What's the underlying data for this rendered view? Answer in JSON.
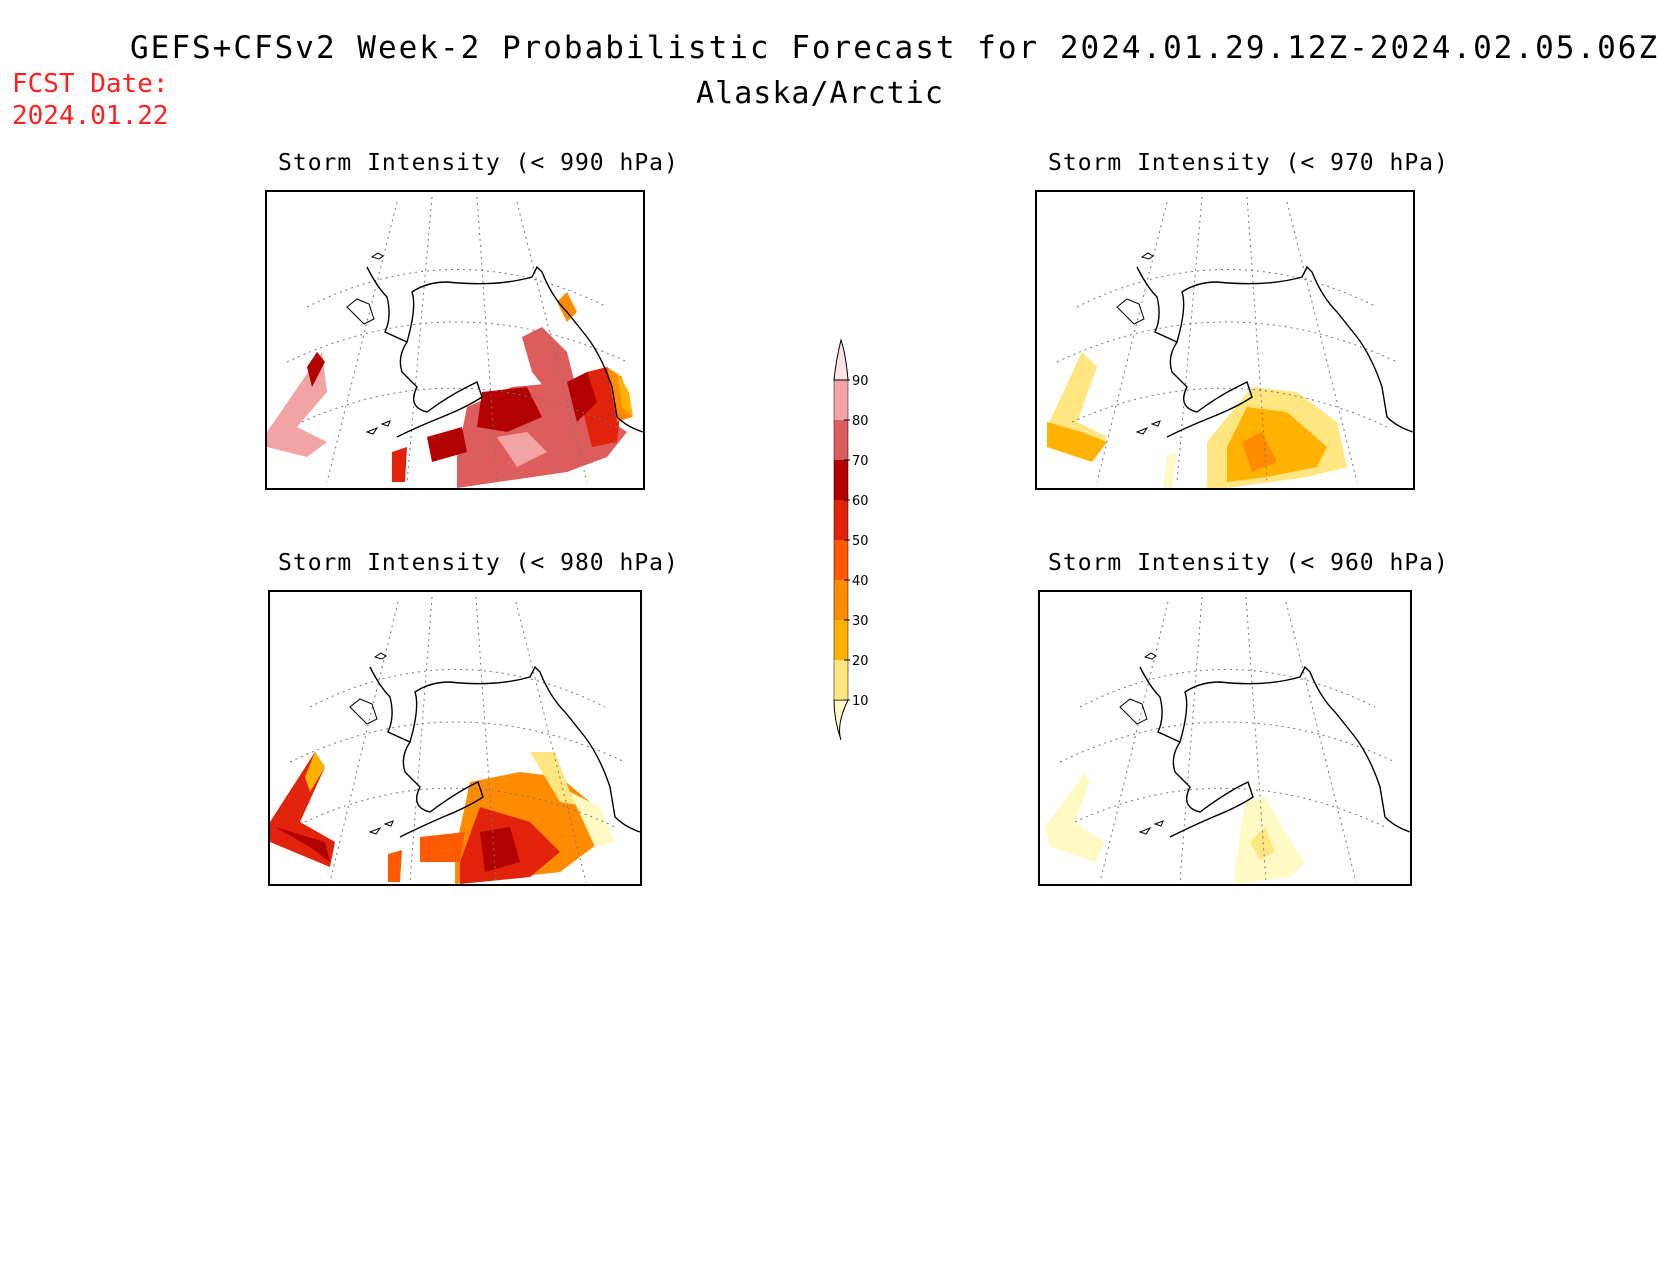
{
  "header": {
    "title": "GEFS+CFSv2 Week-2 Probabilistic Forecast for 2024.01.29.12Z-2024.02.05.06Z",
    "subtitle": "Alaska/Arctic",
    "fcst_label": "FCST Date:",
    "fcst_date": "2024.01.22"
  },
  "panels": [
    {
      "id": "p990",
      "title": "Storm Intensity (< 990 hPa)",
      "scheme": "high"
    },
    {
      "id": "p970",
      "title": "Storm Intensity (< 970 hPa)",
      "scheme": "medium"
    },
    {
      "id": "p980",
      "title": "Storm Intensity (< 980 hPa)",
      "scheme": "mid-high"
    },
    {
      "id": "p960",
      "title": "Storm Intensity (< 960 hPa)",
      "scheme": "low"
    }
  ],
  "legend": {
    "levels": [
      "10",
      "20",
      "30",
      "40",
      "50",
      "60",
      "70",
      "80",
      "90"
    ],
    "colors": [
      "#fff9c4",
      "#ffe680",
      "#ffb300",
      "#ff8c00",
      "#ff5a00",
      "#e0230a",
      "#b30000",
      "#dd5c5c",
      "#f2a4a4",
      "#fde4e4"
    ]
  }
}
